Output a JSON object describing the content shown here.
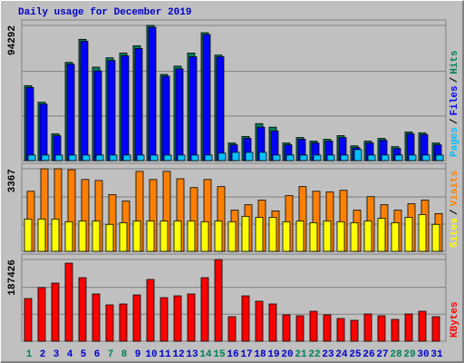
{
  "title": "Daily usage for December 2019",
  "legend_separator": "/",
  "chart_data": [
    {
      "type": "bar",
      "ylim": [
        0,
        94292
      ],
      "yticks": [
        94292
      ],
      "series": [
        {
          "name": "Hits",
          "color": "#00805c",
          "values": [
            52300,
            40700,
            18700,
            68500,
            84600,
            65200,
            71700,
            75000,
            80100,
            94292,
            60100,
            65900,
            75000,
            89200,
            73600,
            12300,
            16800,
            25800,
            23300,
            12300,
            16100,
            13600,
            14900,
            17400,
            10300,
            13600,
            15500,
            9700,
            20000,
            19400,
            12300
          ]
        },
        {
          "name": "Files",
          "color": "#0000ff",
          "values": [
            51000,
            39400,
            17400,
            67200,
            83300,
            62600,
            69800,
            73100,
            78200,
            93000,
            58800,
            64000,
            72400,
            87900,
            72400,
            11000,
            15500,
            23300,
            20700,
            11000,
            14900,
            12300,
            13600,
            16100,
            9000,
            12300,
            14200,
            8400,
            18700,
            18100,
            11000
          ]
        },
        {
          "name": "Pages",
          "color": "#00c0ff",
          "values": [
            3900,
            3900,
            3900,
            3900,
            3900,
            3900,
            3900,
            3900,
            3900,
            3900,
            3900,
            3900,
            3900,
            3900,
            5200,
            5800,
            5800,
            5800,
            3900,
            3900,
            3900,
            3900,
            3900,
            3900,
            7700,
            3900,
            3900,
            3900,
            3900,
            3900,
            3900
          ]
        }
      ]
    },
    {
      "type": "bar",
      "ylim": [
        0,
        3367
      ],
      "yticks": [
        3367
      ],
      "series": [
        {
          "name": "Visits",
          "color": "#ff8000",
          "values": [
            2450,
            3367,
            3367,
            3330,
            2930,
            2890,
            2310,
            2050,
            3260,
            2930,
            3260,
            2960,
            2600,
            2930,
            2640,
            1680,
            1900,
            2090,
            1650,
            2270,
            2640,
            2450,
            2420,
            2490,
            1680,
            2230,
            1900,
            1680,
            1940,
            2090,
            1540
          ]
        },
        {
          "name": "Sites",
          "color": "#ffff00",
          "values": [
            1320,
            1320,
            1320,
            1210,
            1240,
            1240,
            1100,
            1170,
            1240,
            1240,
            1240,
            1240,
            1240,
            1210,
            1240,
            1210,
            1430,
            1390,
            1390,
            1210,
            1240,
            1170,
            1240,
            1210,
            1170,
            1240,
            1350,
            1170,
            1390,
            1500,
            1100
          ]
        }
      ]
    },
    {
      "type": "bar",
      "ylim": [
        0,
        187426
      ],
      "yticks": [
        187426
      ],
      "categories": [
        "1",
        "2",
        "3",
        "4",
        "5",
        "6",
        "7",
        "8",
        "9",
        "10",
        "11",
        "12",
        "13",
        "14",
        "15",
        "16",
        "17",
        "18",
        "19",
        "20",
        "21",
        "22",
        "23",
        "24",
        "25",
        "26",
        "27",
        "28",
        "29",
        "30",
        "31"
      ],
      "category_colors": [
        "#00805c",
        "#0000cc",
        "#0000cc",
        "#0000cc",
        "#0000cc",
        "#0000cc",
        "#00805c",
        "#00805c",
        "#0000cc",
        "#0000cc",
        "#0000cc",
        "#0000cc",
        "#0000cc",
        "#00805c",
        "#00805c",
        "#0000cc",
        "#0000cc",
        "#0000cc",
        "#0000cc",
        "#0000cc",
        "#00805c",
        "#00805c",
        "#0000cc",
        "#0000cc",
        "#0000cc",
        "#0000cc",
        "#0000cc",
        "#00805c",
        "#00805c",
        "#0000cc",
        "#0000cc"
      ],
      "series": [
        {
          "name": "KBytes",
          "color": "#ff0000",
          "values": [
            97900,
            122900,
            133300,
            179100,
            145800,
            108300,
            83300,
            85400,
            106200,
            141600,
            100000,
            104100,
            108300,
            145800,
            187426,
            56200,
            104100,
            91700,
            85400,
            60400,
            58300,
            68700,
            60400,
            52100,
            47900,
            62500,
            58300,
            50000,
            62500,
            68700,
            56200
          ]
        }
      ]
    }
  ]
}
